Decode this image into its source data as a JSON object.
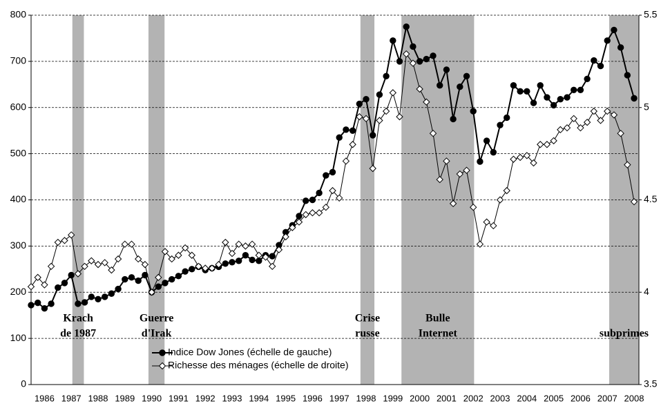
{
  "chart_data": {
    "type": "line",
    "x": [
      1986,
      1986.25,
      1986.5,
      1986.75,
      1987,
      1987.25,
      1987.5,
      1987.75,
      1988,
      1988.25,
      1988.5,
      1988.75,
      1989,
      1989.25,
      1989.5,
      1989.75,
      1990,
      1990.25,
      1990.5,
      1990.75,
      1991,
      1991.25,
      1991.5,
      1991.75,
      1992,
      1992.25,
      1992.5,
      1992.75,
      1993,
      1993.25,
      1993.5,
      1993.75,
      1994,
      1994.25,
      1994.5,
      1994.75,
      1995,
      1995.25,
      1995.5,
      1995.75,
      1996,
      1996.25,
      1996.5,
      1996.75,
      1997,
      1997.25,
      1997.5,
      1997.75,
      1998,
      1998.25,
      1998.5,
      1998.75,
      1999,
      1999.25,
      1999.5,
      1999.75,
      2000,
      2000.25,
      2000.5,
      2000.75,
      2001,
      2001.25,
      2001.5,
      2001.75,
      2002,
      2002.25,
      2002.5,
      2002.75,
      2003,
      2003.25,
      2003.5,
      2003.75,
      2004,
      2004.25,
      2004.5,
      2004.75,
      2005,
      2005.25,
      2005.5,
      2005.75,
      2006,
      2006.25,
      2006.5,
      2006.75,
      2007,
      2007.25,
      2007.5,
      2007.75,
      2008,
      2008.25,
      2008.5
    ],
    "xlim": [
      1986,
      2008.68
    ],
    "xticks": [
      {
        "value": 1986.5,
        "label": "1986"
      },
      {
        "value": 1987.5,
        "label": "1987"
      },
      {
        "value": 1988.5,
        "label": "1988"
      },
      {
        "value": 1989.5,
        "label": "1989"
      },
      {
        "value": 1990.5,
        "label": "1990"
      },
      {
        "value": 1991.5,
        "label": "1991"
      },
      {
        "value": 1992.5,
        "label": "1992"
      },
      {
        "value": 1993.5,
        "label": "1993"
      },
      {
        "value": 1994.5,
        "label": "1994"
      },
      {
        "value": 1995.5,
        "label": "1995"
      },
      {
        "value": 1996.5,
        "label": "1996"
      },
      {
        "value": 1997.5,
        "label": "1997"
      },
      {
        "value": 1998.5,
        "label": "1998"
      },
      {
        "value": 1999.5,
        "label": "1999"
      },
      {
        "value": 2000.5,
        "label": "2000"
      },
      {
        "value": 2001.5,
        "label": "2001"
      },
      {
        "value": 2002.5,
        "label": "2002"
      },
      {
        "value": 2003.5,
        "label": "2003"
      },
      {
        "value": 2004.5,
        "label": "2004"
      },
      {
        "value": 2005.5,
        "label": "2005"
      },
      {
        "value": 2006.5,
        "label": "2006"
      },
      {
        "value": 2007.5,
        "label": "2007"
      },
      {
        "value": 2008.5,
        "label": "2008"
      }
    ],
    "ylim": [
      0,
      800
    ],
    "yticks": [
      0,
      100,
      200,
      300,
      400,
      500,
      600,
      700,
      800
    ],
    "y2lim": [
      3.5,
      5.5
    ],
    "y2ticks": [
      3.5,
      4,
      4.5,
      5,
      5.5
    ],
    "grid": true,
    "series": [
      {
        "name": "Indice Dow Jones (échelle de gauche)",
        "color": "#000000",
        "marker_fill": "#000000",
        "axis": "y",
        "values": [
          172,
          177,
          165,
          175,
          210,
          220,
          237,
          175,
          178,
          190,
          185,
          190,
          197,
          207,
          228,
          232,
          225,
          237,
          200,
          212,
          220,
          228,
          235,
          245,
          250,
          255,
          248,
          252,
          255,
          262,
          265,
          268,
          280,
          270,
          268,
          280,
          278,
          302,
          330,
          345,
          365,
          398,
          400,
          415,
          453,
          460,
          535,
          552,
          550,
          608,
          618,
          540,
          628,
          668,
          745,
          700,
          775,
          732,
          700,
          705,
          712,
          648,
          682,
          575,
          645,
          668,
          592,
          483,
          528,
          503,
          562,
          578,
          648,
          635,
          635,
          610,
          648,
          622,
          605,
          618,
          622,
          638,
          638,
          662,
          702,
          690,
          745,
          768,
          730,
          670,
          620
        ]
      },
      {
        "name": "Richesse des ménages (échelle de droite)",
        "color": "#000000",
        "marker_fill": "#ffffff",
        "axis": "y2",
        "values": [
          4.03,
          4.08,
          4.04,
          4.14,
          4.27,
          4.28,
          4.31,
          4.1,
          4.14,
          4.17,
          4.15,
          4.16,
          4.12,
          4.18,
          4.26,
          4.26,
          4.18,
          4.15,
          4.0,
          4.08,
          4.22,
          4.18,
          4.2,
          4.24,
          4.2,
          4.14,
          4.13,
          4.13,
          4.15,
          4.27,
          4.21,
          4.26,
          4.25,
          4.26,
          4.2,
          4.19,
          4.14,
          4.23,
          4.3,
          4.35,
          4.38,
          4.42,
          4.43,
          4.43,
          4.46,
          4.55,
          4.51,
          4.71,
          4.8,
          4.95,
          4.94,
          4.67,
          4.93,
          4.98,
          5.08,
          4.95,
          5.29,
          5.24,
          5.1,
          5.03,
          4.86,
          4.61,
          4.71,
          4.48,
          4.64,
          4.66,
          4.46,
          4.26,
          4.38,
          4.36,
          4.5,
          4.55,
          4.72,
          4.73,
          4.74,
          4.7,
          4.8,
          4.8,
          4.82,
          4.88,
          4.89,
          4.94,
          4.89,
          4.92,
          4.98,
          4.93,
          4.98,
          4.96,
          4.86,
          4.69,
          4.49
        ]
      }
    ],
    "shaded_regions": [
      {
        "start": 1987.54,
        "end": 1987.97,
        "label": [
          "Krach",
          "de 1987"
        ]
      },
      {
        "start": 1990.38,
        "end": 1990.98,
        "label": [
          "Guerre",
          "d'Irak"
        ]
      },
      {
        "start": 1998.29,
        "end": 1998.81,
        "label": [
          "Crise",
          "russe"
        ]
      },
      {
        "start": 1999.82,
        "end": 2002.53,
        "label": [
          "Bulle",
          "Internet"
        ]
      },
      {
        "start": 2007.57,
        "end": 2008.68,
        "label": [
          "subprimes"
        ]
      }
    ],
    "shade_color": "#b3b3b3"
  }
}
